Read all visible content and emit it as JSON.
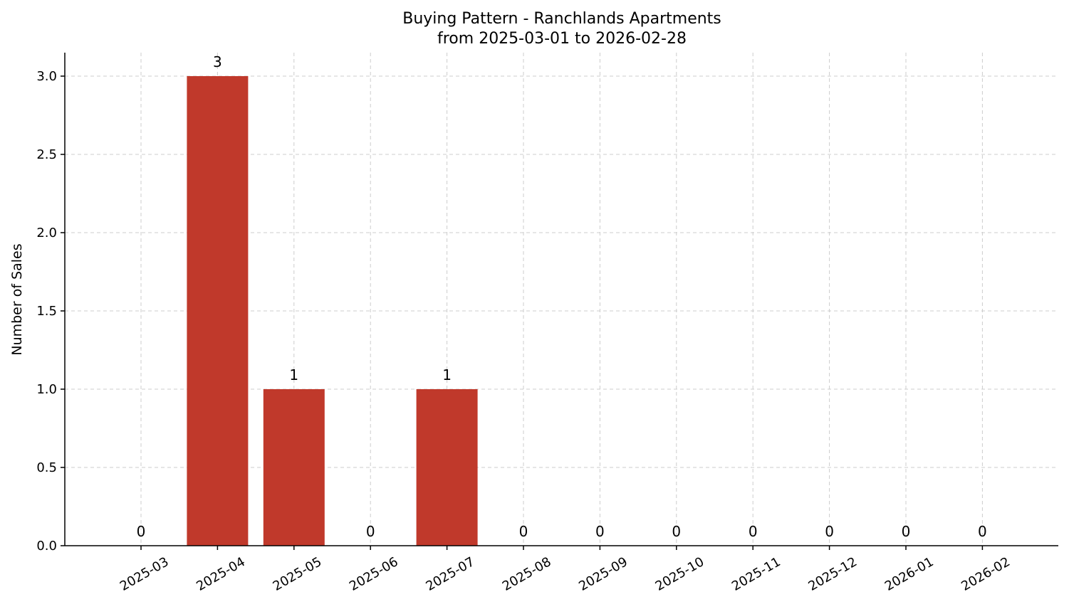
{
  "chart_data": {
    "type": "bar",
    "title": "Buying Pattern - Ranchlands Apartments",
    "subtitle": "from 2025-03-01 to 2026-02-28",
    "xlabel": "",
    "ylabel": "Number of Sales",
    "categories": [
      "2025-03",
      "2025-04",
      "2025-05",
      "2025-06",
      "2025-07",
      "2025-08",
      "2025-09",
      "2025-10",
      "2025-11",
      "2025-12",
      "2026-01",
      "2026-02"
    ],
    "values": [
      0,
      3,
      1,
      0,
      1,
      0,
      0,
      0,
      0,
      0,
      0,
      0
    ],
    "data_labels": [
      "0",
      "3",
      "1",
      "0",
      "1",
      "0",
      "0",
      "0",
      "0",
      "0",
      "0",
      "0"
    ],
    "ylim": [
      0,
      3.15
    ],
    "yticks": [
      0.0,
      0.5,
      1.0,
      1.5,
      2.0,
      2.5,
      3.0
    ],
    "ytick_labels": [
      "0.0",
      "0.5",
      "1.0",
      "1.5",
      "2.0",
      "2.5",
      "3.0"
    ],
    "grid": true,
    "bar_color": "#c0392b"
  }
}
